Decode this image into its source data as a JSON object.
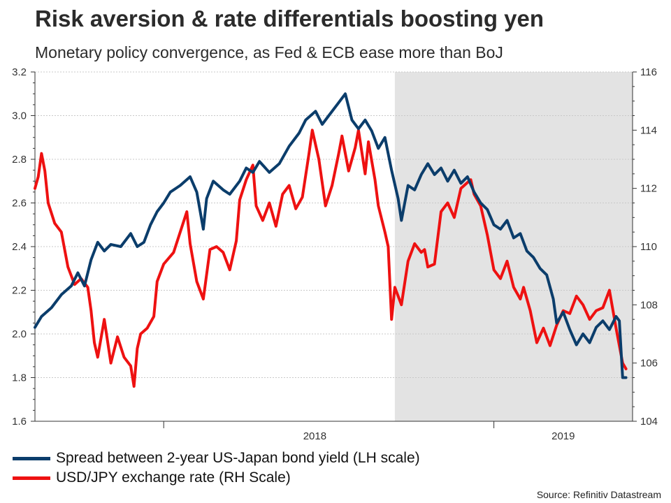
{
  "title": "Risk aversion & rate differentials boosting yen",
  "subtitle": "Monetary policy convergence, as Fed & ECB ease more than BoJ",
  "source": "Source: Refinitiv Datastream",
  "colors": {
    "spread": "#0b3d6b",
    "usdjpy": "#ee1111",
    "shade": "#e3e3e3",
    "grid": "#c8c8c8",
    "axis": "#333333"
  },
  "chart_data": {
    "type": "line",
    "x_unit": "fractional year",
    "xlim": [
      2017.61,
      2019.42
    ],
    "x_ticks": [
      {
        "label": "2018",
        "x": 2018.0
      },
      {
        "label": "2019",
        "x": 2019.0
      }
    ],
    "year_boundaries": [
      2018.0,
      2019.0
    ],
    "shaded_region": [
      2018.7,
      2019.42
    ],
    "y_left": {
      "lim": [
        1.6,
        3.2
      ],
      "ticks": [
        "1.6",
        "1.8",
        "2.0",
        "2.2",
        "2.4",
        "2.6",
        "2.8",
        "3.0",
        "3.2"
      ]
    },
    "y_right": {
      "lim": [
        104,
        116
      ],
      "ticks": [
        "104",
        "106",
        "108",
        "110",
        "112",
        "114",
        "116"
      ]
    },
    "grid": true,
    "series": [
      {
        "name": "Spread between 2-year US-Japan bond yield (LH scale)",
        "axis": "left",
        "points": [
          [
            2017.61,
            2.03
          ],
          [
            2017.63,
            2.08
          ],
          [
            2017.66,
            2.12
          ],
          [
            2017.69,
            2.18
          ],
          [
            2017.72,
            2.22
          ],
          [
            2017.74,
            2.28
          ],
          [
            2017.76,
            2.22
          ],
          [
            2017.78,
            2.34
          ],
          [
            2017.8,
            2.42
          ],
          [
            2017.82,
            2.38
          ],
          [
            2017.84,
            2.41
          ],
          [
            2017.87,
            2.4
          ],
          [
            2017.9,
            2.46
          ],
          [
            2017.92,
            2.4
          ],
          [
            2017.94,
            2.42
          ],
          [
            2017.96,
            2.5
          ],
          [
            2017.98,
            2.56
          ],
          [
            2018.0,
            2.6
          ],
          [
            2018.02,
            2.65
          ],
          [
            2018.05,
            2.68
          ],
          [
            2018.08,
            2.72
          ],
          [
            2018.1,
            2.65
          ],
          [
            2018.12,
            2.48
          ],
          [
            2018.13,
            2.62
          ],
          [
            2018.15,
            2.7
          ],
          [
            2018.18,
            2.66
          ],
          [
            2018.2,
            2.64
          ],
          [
            2018.23,
            2.7
          ],
          [
            2018.25,
            2.76
          ],
          [
            2018.27,
            2.74
          ],
          [
            2018.29,
            2.79
          ],
          [
            2018.32,
            2.74
          ],
          [
            2018.35,
            2.78
          ],
          [
            2018.38,
            2.86
          ],
          [
            2018.41,
            2.92
          ],
          [
            2018.43,
            2.98
          ],
          [
            2018.46,
            3.02
          ],
          [
            2018.48,
            2.96
          ],
          [
            2018.5,
            3.0
          ],
          [
            2018.53,
            3.06
          ],
          [
            2018.55,
            3.1
          ],
          [
            2018.57,
            2.98
          ],
          [
            2018.59,
            2.94
          ],
          [
            2018.61,
            2.98
          ],
          [
            2018.63,
            2.93
          ],
          [
            2018.65,
            2.85
          ],
          [
            2018.67,
            2.9
          ],
          [
            2018.69,
            2.75
          ],
          [
            2018.71,
            2.62
          ],
          [
            2018.72,
            2.52
          ],
          [
            2018.74,
            2.68
          ],
          [
            2018.76,
            2.66
          ],
          [
            2018.78,
            2.73
          ],
          [
            2018.8,
            2.78
          ],
          [
            2018.82,
            2.73
          ],
          [
            2018.84,
            2.76
          ],
          [
            2018.86,
            2.7
          ],
          [
            2018.88,
            2.75
          ],
          [
            2018.9,
            2.69
          ],
          [
            2018.92,
            2.72
          ],
          [
            2018.94,
            2.65
          ],
          [
            2018.96,
            2.6
          ],
          [
            2018.98,
            2.57
          ],
          [
            2019.0,
            2.5
          ],
          [
            2019.02,
            2.48
          ],
          [
            2019.04,
            2.52
          ],
          [
            2019.06,
            2.44
          ],
          [
            2019.08,
            2.46
          ],
          [
            2019.1,
            2.38
          ],
          [
            2019.12,
            2.35
          ],
          [
            2019.14,
            2.3
          ],
          [
            2019.16,
            2.27
          ],
          [
            2019.18,
            2.16
          ],
          [
            2019.19,
            2.05
          ],
          [
            2019.21,
            2.1
          ],
          [
            2019.23,
            2.02
          ],
          [
            2019.25,
            1.95
          ],
          [
            2019.27,
            2.0
          ],
          [
            2019.29,
            1.96
          ],
          [
            2019.31,
            2.03
          ],
          [
            2019.33,
            2.06
          ],
          [
            2019.35,
            2.02
          ],
          [
            2019.37,
            2.08
          ],
          [
            2019.38,
            2.06
          ],
          [
            2019.39,
            1.8
          ],
          [
            2019.4,
            1.8
          ]
        ]
      },
      {
        "name": "USD/JPY exchange rate (RH Scale)",
        "axis": "right",
        "points": [
          [
            2017.61,
            112.0
          ],
          [
            2017.62,
            112.4
          ],
          [
            2017.63,
            113.2
          ],
          [
            2017.64,
            112.6
          ],
          [
            2017.65,
            111.5
          ],
          [
            2017.67,
            110.8
          ],
          [
            2017.69,
            110.5
          ],
          [
            2017.71,
            109.3
          ],
          [
            2017.73,
            108.7
          ],
          [
            2017.75,
            108.9
          ],
          [
            2017.77,
            108.6
          ],
          [
            2017.78,
            107.8
          ],
          [
            2017.79,
            106.7
          ],
          [
            2017.8,
            106.2
          ],
          [
            2017.82,
            107.5
          ],
          [
            2017.84,
            106.0
          ],
          [
            2017.86,
            106.9
          ],
          [
            2017.88,
            106.2
          ],
          [
            2017.9,
            105.9
          ],
          [
            2017.91,
            105.2
          ],
          [
            2017.92,
            106.5
          ],
          [
            2017.93,
            107.0
          ],
          [
            2017.95,
            107.2
          ],
          [
            2017.97,
            107.6
          ],
          [
            2017.98,
            108.8
          ],
          [
            2018.0,
            109.4
          ],
          [
            2018.03,
            109.8
          ],
          [
            2018.05,
            110.5
          ],
          [
            2018.07,
            111.2
          ],
          [
            2018.08,
            110.1
          ],
          [
            2018.1,
            108.8
          ],
          [
            2018.12,
            108.2
          ],
          [
            2018.14,
            109.9
          ],
          [
            2018.16,
            110.0
          ],
          [
            2018.18,
            109.8
          ],
          [
            2018.2,
            109.2
          ],
          [
            2018.22,
            110.2
          ],
          [
            2018.23,
            111.6
          ],
          [
            2018.25,
            112.3
          ],
          [
            2018.27,
            112.8
          ],
          [
            2018.28,
            111.4
          ],
          [
            2018.3,
            110.9
          ],
          [
            2018.32,
            111.5
          ],
          [
            2018.34,
            110.7
          ],
          [
            2018.36,
            111.8
          ],
          [
            2018.38,
            112.1
          ],
          [
            2018.4,
            111.3
          ],
          [
            2018.42,
            111.7
          ],
          [
            2018.44,
            113.2
          ],
          [
            2018.45,
            114.0
          ],
          [
            2018.47,
            113.0
          ],
          [
            2018.49,
            111.4
          ],
          [
            2018.51,
            112.1
          ],
          [
            2018.53,
            113.2
          ],
          [
            2018.54,
            113.8
          ],
          [
            2018.56,
            112.6
          ],
          [
            2018.58,
            113.4
          ],
          [
            2018.59,
            114.0
          ],
          [
            2018.61,
            112.5
          ],
          [
            2018.62,
            113.6
          ],
          [
            2018.64,
            112.3
          ],
          [
            2018.65,
            111.4
          ],
          [
            2018.67,
            110.5
          ],
          [
            2018.68,
            110.0
          ],
          [
            2018.69,
            107.5
          ],
          [
            2018.7,
            108.6
          ],
          [
            2018.72,
            108.0
          ],
          [
            2018.74,
            109.5
          ],
          [
            2018.76,
            110.1
          ],
          [
            2018.78,
            109.8
          ],
          [
            2018.79,
            109.9
          ],
          [
            2018.8,
            109.3
          ],
          [
            2018.82,
            109.4
          ],
          [
            2018.84,
            111.2
          ],
          [
            2018.86,
            111.5
          ],
          [
            2018.88,
            111.0
          ],
          [
            2018.9,
            112.0
          ],
          [
            2018.92,
            112.2
          ],
          [
            2018.93,
            112.3
          ],
          [
            2018.94,
            111.8
          ],
          [
            2018.96,
            111.4
          ],
          [
            2018.98,
            110.4
          ],
          [
            2019.0,
            109.2
          ],
          [
            2019.02,
            108.9
          ],
          [
            2019.04,
            109.5
          ],
          [
            2019.06,
            108.6
          ],
          [
            2019.08,
            108.2
          ],
          [
            2019.09,
            108.6
          ],
          [
            2019.11,
            107.8
          ],
          [
            2019.13,
            106.7
          ],
          [
            2019.15,
            107.2
          ],
          [
            2019.17,
            106.6
          ],
          [
            2019.19,
            107.3
          ],
          [
            2019.21,
            107.8
          ],
          [
            2019.23,
            107.7
          ],
          [
            2019.25,
            108.3
          ],
          [
            2019.27,
            108.0
          ],
          [
            2019.29,
            107.5
          ],
          [
            2019.31,
            107.8
          ],
          [
            2019.33,
            107.9
          ],
          [
            2019.35,
            108.5
          ],
          [
            2019.37,
            107.2
          ],
          [
            2019.38,
            106.6
          ],
          [
            2019.39,
            106.0
          ],
          [
            2019.4,
            105.8
          ]
        ]
      }
    ]
  }
}
